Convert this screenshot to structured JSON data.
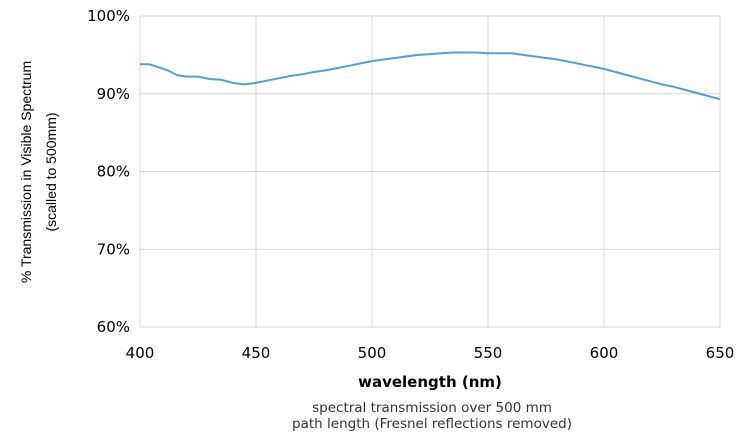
{
  "chart_data": {
    "type": "line",
    "xlabel": "wavelength (nm)",
    "ylabel_lines": [
      "% Transmission in Visible Spectrum",
      "(scalled to 500mm)"
    ],
    "caption_lines": [
      "spectral transmission over 500 mm",
      "path length (Fresnel reflections removed)"
    ],
    "xlim": [
      400,
      650
    ],
    "ylim": [
      60,
      100
    ],
    "x_ticks": [
      400,
      450,
      500,
      550,
      600,
      650
    ],
    "y_ticks": [
      60,
      70,
      80,
      90,
      100
    ],
    "x_tick_labels": [
      "400",
      "450",
      "500",
      "550",
      "600",
      "650"
    ],
    "y_tick_labels": [
      "60%",
      "70%",
      "80%",
      "90%",
      "100%"
    ],
    "grid": true,
    "line_color": "#5b9bd5",
    "grid_color": "#d9d9d9",
    "series": [
      {
        "x": [
          400,
          404,
          408,
          412,
          416,
          420,
          425,
          430,
          435,
          440,
          445,
          450,
          455,
          460,
          465,
          470,
          475,
          480,
          485,
          490,
          495,
          500,
          505,
          510,
          515,
          520,
          525,
          530,
          535,
          540,
          545,
          550,
          555,
          560,
          565,
          570,
          575,
          580,
          585,
          590,
          595,
          600,
          605,
          610,
          615,
          620,
          625,
          630,
          635,
          640,
          645,
          650
        ],
        "y": [
          93.8,
          93.8,
          93.4,
          93.0,
          92.4,
          92.2,
          92.2,
          91.9,
          91.8,
          91.4,
          91.2,
          91.4,
          91.7,
          92.0,
          92.3,
          92.5,
          92.8,
          93.0,
          93.3,
          93.6,
          93.9,
          94.2,
          94.4,
          94.6,
          94.8,
          95.0,
          95.1,
          95.2,
          95.3,
          95.3,
          95.3,
          95.2,
          95.2,
          95.2,
          95.0,
          94.8,
          94.6,
          94.4,
          94.1,
          93.8,
          93.5,
          93.2,
          92.8,
          92.4,
          92.0,
          91.6,
          91.2,
          90.9,
          90.5,
          90.1,
          89.7,
          89.3
        ]
      }
    ]
  }
}
